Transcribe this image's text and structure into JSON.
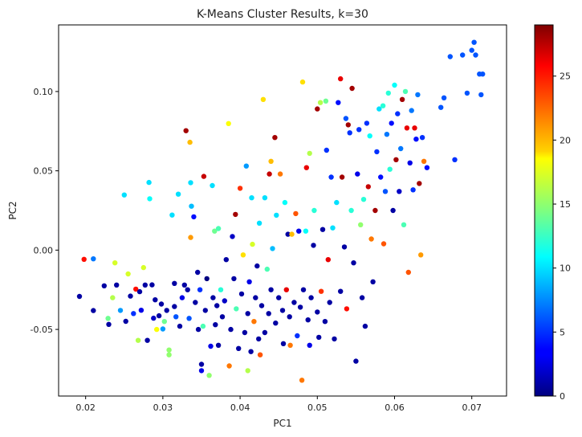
{
  "chart_data": {
    "type": "scatter",
    "title": "K-Means Cluster Results, k=30",
    "xlabel": "PC1",
    "ylabel": "PC2",
    "xlim": [
      0.0165,
      0.0745
    ],
    "ylim": [
      -0.092,
      0.142
    ],
    "xticks": [
      0.02,
      0.03,
      0.04,
      0.05,
      0.06,
      0.07
    ],
    "xtick_labels": [
      "0.02",
      "0.03",
      "0.04",
      "0.05",
      "0.06",
      "0.07"
    ],
    "yticks": [
      -0.05,
      0.0,
      0.05,
      0.1
    ],
    "ytick_labels": [
      "-0.05",
      "0.00",
      "0.05",
      "0.10"
    ],
    "grid": false,
    "colorbar": {
      "colormap": "jet",
      "range": [
        0,
        29
      ],
      "ticks": [
        0,
        5,
        10,
        15,
        20,
        25
      ],
      "tick_labels": [
        "0",
        "5",
        "10",
        "15",
        "20",
        "25"
      ]
    },
    "points": [
      {
        "x": 0.0192,
        "y": -0.0292,
        "c": 1
      },
      {
        "x": 0.0198,
        "y": -0.0058,
        "c": 25
      },
      {
        "x": 0.021,
        "y": -0.0055,
        "c": 7
      },
      {
        "x": 0.021,
        "y": -0.0381,
        "c": 1
      },
      {
        "x": 0.0224,
        "y": -0.0225,
        "c": 1
      },
      {
        "x": 0.0229,
        "y": -0.043,
        "c": 14
      },
      {
        "x": 0.023,
        "y": -0.0468,
        "c": 1
      },
      {
        "x": 0.0235,
        "y": -0.03,
        "c": 16
      },
      {
        "x": 0.0238,
        "y": -0.008,
        "c": 17
      },
      {
        "x": 0.024,
        "y": -0.022,
        "c": 1
      },
      {
        "x": 0.0245,
        "y": -0.038,
        "c": 8
      },
      {
        "x": 0.025,
        "y": 0.0348,
        "c": 10
      },
      {
        "x": 0.0252,
        "y": -0.0449,
        "c": 1
      },
      {
        "x": 0.0255,
        "y": -0.015,
        "c": 17
      },
      {
        "x": 0.0258,
        "y": -0.029,
        "c": 1
      },
      {
        "x": 0.0262,
        "y": -0.04,
        "c": 5
      },
      {
        "x": 0.0265,
        "y": -0.0246,
        "c": 25
      },
      {
        "x": 0.0268,
        "y": -0.0569,
        "c": 16
      },
      {
        "x": 0.027,
        "y": -0.0262,
        "c": 1
      },
      {
        "x": 0.0272,
        "y": -0.0379,
        "c": 3
      },
      {
        "x": 0.0275,
        "y": -0.011,
        "c": 17
      },
      {
        "x": 0.0277,
        "y": -0.022,
        "c": 1
      },
      {
        "x": 0.028,
        "y": -0.0569,
        "c": 1
      },
      {
        "x": 0.0282,
        "y": 0.0427,
        "c": 10
      },
      {
        "x": 0.0283,
        "y": 0.0324,
        "c": 11
      },
      {
        "x": 0.0286,
        "y": -0.0219,
        "c": 1
      },
      {
        "x": 0.0288,
        "y": -0.0429,
        "c": 2
      },
      {
        "x": 0.029,
        "y": -0.0313,
        "c": 1
      },
      {
        "x": 0.0292,
        "y": -0.05,
        "c": 18
      },
      {
        "x": 0.0295,
        "y": -0.0414,
        "c": 1
      },
      {
        "x": 0.0298,
        "y": -0.034,
        "c": 1
      },
      {
        "x": 0.03,
        "y": -0.0497,
        "c": 8
      },
      {
        "x": 0.0302,
        "y": -0.045,
        "c": 14
      },
      {
        "x": 0.0305,
        "y": -0.038,
        "c": 1
      },
      {
        "x": 0.0308,
        "y": -0.063,
        "c": 15
      },
      {
        "x": 0.0308,
        "y": -0.066,
        "c": 15
      },
      {
        "x": 0.0312,
        "y": 0.0221,
        "c": 10
      },
      {
        "x": 0.0315,
        "y": -0.0356,
        "c": 1
      },
      {
        "x": 0.0315,
        "y": -0.021,
        "c": 1
      },
      {
        "x": 0.0317,
        "y": -0.042,
        "c": 6
      },
      {
        "x": 0.032,
        "y": 0.0353,
        "c": 10
      },
      {
        "x": 0.0322,
        "y": -0.048,
        "c": 1
      },
      {
        "x": 0.0325,
        "y": -0.03,
        "c": 3
      },
      {
        "x": 0.0328,
        "y": -0.022,
        "c": 1
      },
      {
        "x": 0.033,
        "y": 0.0753,
        "c": 28
      },
      {
        "x": 0.0332,
        "y": -0.025,
        "c": 1
      },
      {
        "x": 0.0334,
        "y": -0.043,
        "c": 6
      },
      {
        "x": 0.0335,
        "y": 0.068,
        "c": 20
      },
      {
        "x": 0.0336,
        "y": 0.008,
        "c": 21
      },
      {
        "x": 0.0336,
        "y": 0.0425,
        "c": 10
      },
      {
        "x": 0.0337,
        "y": 0.0277,
        "c": 9
      },
      {
        "x": 0.034,
        "y": 0.021,
        "c": 4
      },
      {
        "x": 0.0342,
        "y": -0.033,
        "c": 1
      },
      {
        "x": 0.0345,
        "y": -0.014,
        "c": 1
      },
      {
        "x": 0.0346,
        "y": -0.05,
        "c": 1
      },
      {
        "x": 0.0348,
        "y": -0.025,
        "c": 5
      },
      {
        "x": 0.035,
        "y": -0.072,
        "c": 1
      },
      {
        "x": 0.035,
        "y": -0.076,
        "c": 3
      },
      {
        "x": 0.0352,
        "y": -0.048,
        "c": 13
      },
      {
        "x": 0.0353,
        "y": 0.0465,
        "c": 27
      },
      {
        "x": 0.0355,
        "y": -0.038,
        "c": 1
      },
      {
        "x": 0.0357,
        "y": -0.018,
        "c": 0
      },
      {
        "x": 0.036,
        "y": -0.079,
        "c": 15
      },
      {
        "x": 0.0362,
        "y": -0.0606,
        "c": 3
      },
      {
        "x": 0.0364,
        "y": 0.0407,
        "c": 10
      },
      {
        "x": 0.0365,
        "y": -0.03,
        "c": 1
      },
      {
        "x": 0.0367,
        "y": 0.012,
        "c": 14
      },
      {
        "x": 0.0368,
        "y": -0.047,
        "c": 1
      },
      {
        "x": 0.037,
        "y": -0.035,
        "c": 1
      },
      {
        "x": 0.0372,
        "y": -0.06,
        "c": 1
      },
      {
        "x": 0.0372,
        "y": 0.0136,
        "c": 13
      },
      {
        "x": 0.0375,
        "y": -0.025,
        "c": 12
      },
      {
        "x": 0.0377,
        "y": -0.042,
        "c": 1
      },
      {
        "x": 0.038,
        "y": -0.032,
        "c": 2
      },
      {
        "x": 0.0382,
        "y": -0.006,
        "c": 1
      },
      {
        "x": 0.0385,
        "y": 0.0798,
        "c": 18
      },
      {
        "x": 0.0386,
        "y": -0.073,
        "c": 22
      },
      {
        "x": 0.0388,
        "y": -0.05,
        "c": 1
      },
      {
        "x": 0.039,
        "y": 0.0086,
        "c": 2
      },
      {
        "x": 0.0392,
        "y": -0.018,
        "c": 1
      },
      {
        "x": 0.0394,
        "y": 0.0225,
        "c": 28
      },
      {
        "x": 0.0395,
        "y": -0.037,
        "c": 13
      },
      {
        "x": 0.0398,
        "y": -0.062,
        "c": 1
      },
      {
        "x": 0.04,
        "y": 0.039,
        "c": 24
      },
      {
        "x": 0.0402,
        "y": -0.0276,
        "c": 1
      },
      {
        "x": 0.0404,
        "y": -0.003,
        "c": 19
      },
      {
        "x": 0.0406,
        "y": -0.052,
        "c": 1
      },
      {
        "x": 0.0408,
        "y": 0.053,
        "c": 8
      },
      {
        "x": 0.041,
        "y": -0.04,
        "c": 1
      },
      {
        "x": 0.041,
        "y": -0.076,
        "c": 16
      },
      {
        "x": 0.0412,
        "y": -0.02,
        "c": 3
      },
      {
        "x": 0.0414,
        "y": -0.064,
        "c": 1
      },
      {
        "x": 0.0415,
        "y": 0.033,
        "c": 10
      },
      {
        "x": 0.0416,
        "y": 0.0037,
        "c": 17
      },
      {
        "x": 0.0418,
        "y": -0.045,
        "c": 22
      },
      {
        "x": 0.042,
        "y": -0.03,
        "c": 1
      },
      {
        "x": 0.0422,
        "y": -0.01,
        "c": 1
      },
      {
        "x": 0.0424,
        "y": -0.056,
        "c": 1
      },
      {
        "x": 0.0425,
        "y": 0.017,
        "c": 10
      },
      {
        "x": 0.0426,
        "y": -0.066,
        "c": 23
      },
      {
        "x": 0.0428,
        "y": -0.035,
        "c": 1
      },
      {
        "x": 0.043,
        "y": 0.095,
        "c": 19
      },
      {
        "x": 0.0432,
        "y": 0.033,
        "c": 10
      },
      {
        "x": 0.0432,
        "y": -0.052,
        "c": 1
      },
      {
        "x": 0.0435,
        "y": -0.012,
        "c": 13
      },
      {
        "x": 0.0437,
        "y": -0.04,
        "c": 1
      },
      {
        "x": 0.0438,
        "y": 0.048,
        "c": 27
      },
      {
        "x": 0.044,
        "y": -0.025,
        "c": 1
      },
      {
        "x": 0.044,
        "y": 0.056,
        "c": 20
      },
      {
        "x": 0.0442,
        "y": 0.001,
        "c": 9
      },
      {
        "x": 0.0445,
        "y": 0.071,
        "c": 28
      },
      {
        "x": 0.0446,
        "y": -0.046,
        "c": 1
      },
      {
        "x": 0.0447,
        "y": 0.022,
        "c": 10
      },
      {
        "x": 0.045,
        "y": -0.03,
        "c": 1
      },
      {
        "x": 0.0452,
        "y": 0.048,
        "c": 22
      },
      {
        "x": 0.0455,
        "y": -0.038,
        "c": 1
      },
      {
        "x": 0.0456,
        "y": -0.059,
        "c": 1
      },
      {
        "x": 0.0458,
        "y": 0.03,
        "c": 11
      },
      {
        "x": 0.046,
        "y": -0.025,
        "c": 26
      },
      {
        "x": 0.0462,
        "y": 0.01,
        "c": 1
      },
      {
        "x": 0.0464,
        "y": -0.042,
        "c": 1
      },
      {
        "x": 0.0465,
        "y": -0.06,
        "c": 22
      },
      {
        "x": 0.0467,
        "y": 0.01,
        "c": 20
      },
      {
        "x": 0.047,
        "y": -0.033,
        "c": 1
      },
      {
        "x": 0.0472,
        "y": 0.023,
        "c": 23
      },
      {
        "x": 0.0474,
        "y": -0.054,
        "c": 5
      },
      {
        "x": 0.0476,
        "y": 0.012,
        "c": 3
      },
      {
        "x": 0.0478,
        "y": -0.036,
        "c": 1
      },
      {
        "x": 0.048,
        "y": -0.082,
        "c": 22
      },
      {
        "x": 0.0481,
        "y": 0.106,
        "c": 19
      },
      {
        "x": 0.0482,
        "y": -0.025,
        "c": 1
      },
      {
        "x": 0.0485,
        "y": 0.012,
        "c": 11
      },
      {
        "x": 0.0486,
        "y": 0.052,
        "c": 26
      },
      {
        "x": 0.0488,
        "y": -0.044,
        "c": 1
      },
      {
        "x": 0.049,
        "y": 0.061,
        "c": 16
      },
      {
        "x": 0.049,
        "y": -0.06,
        "c": 3
      },
      {
        "x": 0.0492,
        "y": -0.03,
        "c": 1
      },
      {
        "x": 0.0495,
        "y": 0.003,
        "c": 1
      },
      {
        "x": 0.0496,
        "y": 0.025,
        "c": 12
      },
      {
        "x": 0.05,
        "y": -0.039,
        "c": 1
      },
      {
        "x": 0.05,
        "y": 0.089,
        "c": 28
      },
      {
        "x": 0.0502,
        "y": -0.055,
        "c": 1
      },
      {
        "x": 0.0504,
        "y": 0.093,
        "c": 16
      },
      {
        "x": 0.0505,
        "y": -0.026,
        "c": 24
      },
      {
        "x": 0.0507,
        "y": 0.013,
        "c": 1
      },
      {
        "x": 0.051,
        "y": -0.045,
        "c": 1
      },
      {
        "x": 0.0511,
        "y": 0.094,
        "c": 14
      },
      {
        "x": 0.0512,
        "y": 0.063,
        "c": 5
      },
      {
        "x": 0.0514,
        "y": -0.006,
        "c": 26
      },
      {
        "x": 0.0516,
        "y": -0.033,
        "c": 1
      },
      {
        "x": 0.0518,
        "y": 0.046,
        "c": 5
      },
      {
        "x": 0.052,
        "y": 0.014,
        "c": 10
      },
      {
        "x": 0.0522,
        "y": -0.056,
        "c": 1
      },
      {
        "x": 0.0525,
        "y": 0.03,
        "c": 10
      },
      {
        "x": 0.0527,
        "y": 0.093,
        "c": 4
      },
      {
        "x": 0.053,
        "y": -0.026,
        "c": 1
      },
      {
        "x": 0.053,
        "y": 0.108,
        "c": 26
      },
      {
        "x": 0.0532,
        "y": 0.046,
        "c": 28
      },
      {
        "x": 0.0535,
        "y": 0.002,
        "c": 1
      },
      {
        "x": 0.0537,
        "y": 0.083,
        "c": 6
      },
      {
        "x": 0.0538,
        "y": -0.037,
        "c": 25
      },
      {
        "x": 0.054,
        "y": 0.079,
        "c": 28
      },
      {
        "x": 0.0542,
        "y": 0.074,
        "c": 5
      },
      {
        "x": 0.0544,
        "y": 0.025,
        "c": 12
      },
      {
        "x": 0.0545,
        "y": 0.102,
        "c": 28
      },
      {
        "x": 0.0547,
        "y": -0.008,
        "c": 1
      },
      {
        "x": 0.055,
        "y": -0.07,
        "c": 1
      },
      {
        "x": 0.0552,
        "y": 0.048,
        "c": 3
      },
      {
        "x": 0.0554,
        "y": 0.076,
        "c": 5
      },
      {
        "x": 0.0556,
        "y": 0.016,
        "c": 15
      },
      {
        "x": 0.0558,
        "y": -0.03,
        "c": 1
      },
      {
        "x": 0.056,
        "y": 0.032,
        "c": 12
      },
      {
        "x": 0.0562,
        "y": -0.048,
        "c": 1
      },
      {
        "x": 0.0564,
        "y": 0.08,
        "c": 5
      },
      {
        "x": 0.0566,
        "y": 0.04,
        "c": 27
      },
      {
        "x": 0.0568,
        "y": 0.072,
        "c": 11
      },
      {
        "x": 0.057,
        "y": 0.007,
        "c": 22
      },
      {
        "x": 0.0572,
        "y": -0.02,
        "c": 1
      },
      {
        "x": 0.0575,
        "y": 0.025,
        "c": 28
      },
      {
        "x": 0.0577,
        "y": 0.062,
        "c": 5
      },
      {
        "x": 0.058,
        "y": 0.089,
        "c": 10
      },
      {
        "x": 0.0582,
        "y": 0.046,
        "c": 4
      },
      {
        "x": 0.0585,
        "y": 0.091,
        "c": 12
      },
      {
        "x": 0.0586,
        "y": 0.004,
        "c": 23
      },
      {
        "x": 0.0588,
        "y": 0.037,
        "c": 6
      },
      {
        "x": 0.059,
        "y": 0.073,
        "c": 7
      },
      {
        "x": 0.0592,
        "y": 0.099,
        "c": 12
      },
      {
        "x": 0.0594,
        "y": 0.051,
        "c": 12
      },
      {
        "x": 0.0596,
        "y": 0.08,
        "c": 4
      },
      {
        "x": 0.0598,
        "y": 0.025,
        "c": 1
      },
      {
        "x": 0.06,
        "y": 0.104,
        "c": 11
      },
      {
        "x": 0.0602,
        "y": 0.057,
        "c": 28
      },
      {
        "x": 0.0604,
        "y": 0.086,
        "c": 5
      },
      {
        "x": 0.0606,
        "y": 0.037,
        "c": 2
      },
      {
        "x": 0.0608,
        "y": 0.064,
        "c": 7
      },
      {
        "x": 0.061,
        "y": 0.095,
        "c": 28
      },
      {
        "x": 0.0612,
        "y": 0.016,
        "c": 13
      },
      {
        "x": 0.0614,
        "y": 0.1,
        "c": 13
      },
      {
        "x": 0.0616,
        "y": 0.077,
        "c": 26
      },
      {
        "x": 0.0618,
        "y": -0.014,
        "c": 23
      },
      {
        "x": 0.062,
        "y": 0.055,
        "c": 3
      },
      {
        "x": 0.0622,
        "y": 0.088,
        "c": 7
      },
      {
        "x": 0.0624,
        "y": 0.038,
        "c": 5
      },
      {
        "x": 0.0626,
        "y": 0.077,
        "c": 26
      },
      {
        "x": 0.0628,
        "y": 0.07,
        "c": 4
      },
      {
        "x": 0.063,
        "y": 0.098,
        "c": 7
      },
      {
        "x": 0.0632,
        "y": 0.042,
        "c": 28
      },
      {
        "x": 0.0634,
        "y": -0.003,
        "c": 21
      },
      {
        "x": 0.0636,
        "y": 0.071,
        "c": 5
      },
      {
        "x": 0.0638,
        "y": 0.056,
        "c": 22
      },
      {
        "x": 0.0642,
        "y": 0.052,
        "c": 4
      },
      {
        "x": 0.066,
        "y": 0.09,
        "c": 6
      },
      {
        "x": 0.0664,
        "y": 0.096,
        "c": 6
      },
      {
        "x": 0.0672,
        "y": 0.122,
        "c": 6
      },
      {
        "x": 0.0678,
        "y": 0.057,
        "c": 5
      },
      {
        "x": 0.0688,
        "y": 0.123,
        "c": 6
      },
      {
        "x": 0.0694,
        "y": 0.099,
        "c": 6
      },
      {
        "x": 0.07,
        "y": 0.126,
        "c": 6
      },
      {
        "x": 0.0703,
        "y": 0.131,
        "c": 6
      },
      {
        "x": 0.0705,
        "y": 0.123,
        "c": 6
      },
      {
        "x": 0.071,
        "y": 0.111,
        "c": 6
      },
      {
        "x": 0.0714,
        "y": 0.111,
        "c": 6
      },
      {
        "x": 0.0712,
        "y": 0.098,
        "c": 6
      }
    ]
  }
}
